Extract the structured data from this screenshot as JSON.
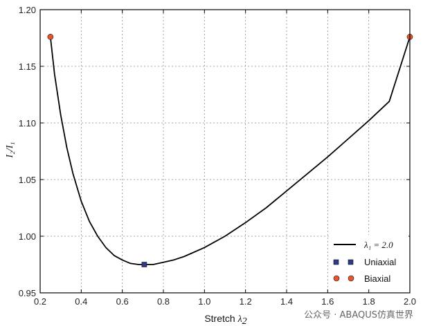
{
  "chart_data": {
    "type": "line",
    "title": "",
    "xlabel": "Stretch λ₂",
    "xlabel_text": "Stretch ",
    "xlabel_symbol": "λ",
    "xlabel_sub": "2",
    "ylabel": "I₂/I₁",
    "xlim": [
      0.2,
      2.0
    ],
    "ylim": [
      0.95,
      1.2
    ],
    "xticks": [
      "0.2",
      "0.4",
      "0.6",
      "0.8",
      "1.0",
      "1.2",
      "1.4",
      "1.6",
      "1.8",
      "2.0"
    ],
    "yticks": [
      "0.95",
      "1.00",
      "1.05",
      "1.10",
      "1.15",
      "1.20"
    ],
    "grid": true,
    "legend_position": "bottom-right",
    "series": [
      {
        "name": "λ₁ = 2.0",
        "kind": "line",
        "color": "#000000",
        "x": [
          0.25,
          0.27,
          0.3,
          0.33,
          0.36,
          0.4,
          0.44,
          0.48,
          0.52,
          0.56,
          0.6,
          0.64,
          0.68,
          0.71,
          0.75,
          0.8,
          0.85,
          0.9,
          0.95,
          1.0,
          1.05,
          1.1,
          1.2,
          1.3,
          1.4,
          1.5,
          1.6,
          1.7,
          1.8,
          1.9,
          2.0
        ],
        "y": [
          1.176,
          1.143,
          1.107,
          1.078,
          1.055,
          1.031,
          1.013,
          1.0,
          0.99,
          0.983,
          0.979,
          0.976,
          0.975,
          0.975,
          0.975,
          0.977,
          0.979,
          0.982,
          0.986,
          0.99,
          0.995,
          1.0,
          1.012,
          1.025,
          1.04,
          1.055,
          1.07,
          1.086,
          1.102,
          1.119,
          1.176
        ]
      },
      {
        "name": "Uniaxial",
        "kind": "marker",
        "marker": "square",
        "color": "#2e3a8c",
        "x": [
          0.707
        ],
        "y": [
          0.975
        ]
      },
      {
        "name": "Biaxial",
        "kind": "marker",
        "marker": "circle",
        "color": "#e8542e",
        "x": [
          0.25,
          2.0
        ],
        "y": [
          1.176,
          1.176
        ]
      }
    ]
  },
  "watermark": "公众号 · ABAQUS仿真世界"
}
